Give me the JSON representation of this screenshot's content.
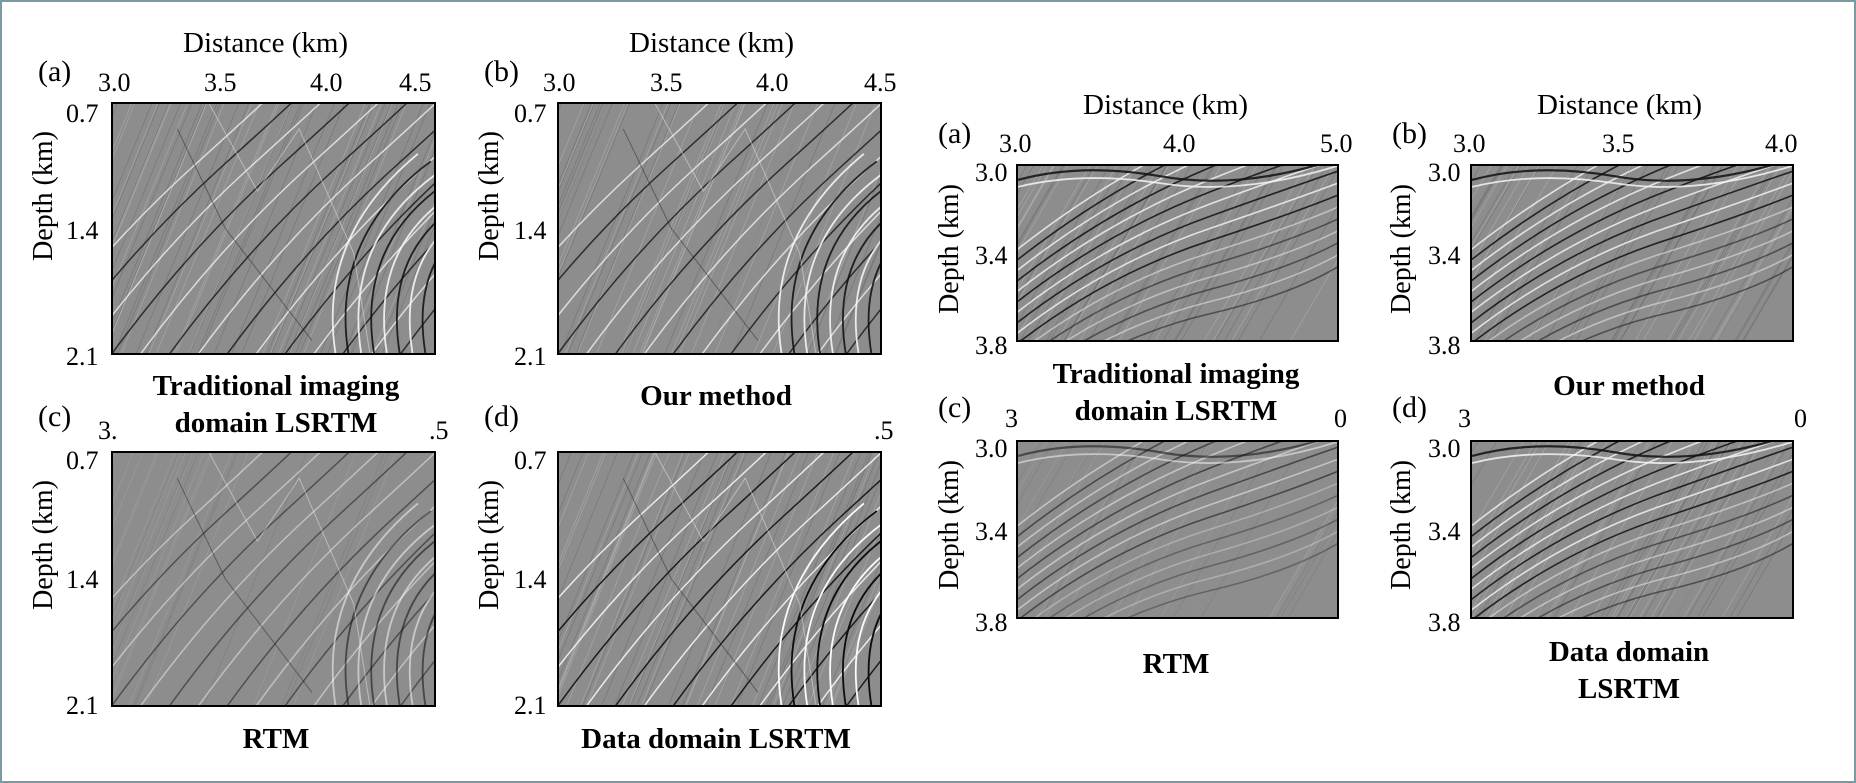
{
  "figure_left": {
    "xlabel": "Distance (km)",
    "ylabel": "Depth (km)",
    "panels": [
      {
        "letter": "(a)",
        "xticks": [
          "3.0",
          "3.5",
          "4.0",
          "4.5"
        ],
        "yticks": [
          "0.7",
          "1.4",
          "2.1"
        ],
        "caption_lines": [
          "Traditional imaging",
          "domain LSRTM"
        ]
      },
      {
        "letter": "(b)",
        "xticks": [
          "3.0",
          "3.5",
          "4.0",
          "4.5"
        ],
        "yticks": [
          "0.7",
          "1.4",
          "2.1"
        ],
        "caption_lines": [
          "Our method"
        ]
      },
      {
        "letter": "(c)",
        "xticks": [
          "3.",
          ".5"
        ],
        "yticks": [
          "0.7",
          "1.4",
          "2.1"
        ],
        "caption_lines": [
          "RTM"
        ]
      },
      {
        "letter": "(d)",
        "xticks": [
          ".5"
        ],
        "yticks": [
          "0.7",
          "1.4",
          "2.1"
        ],
        "caption_lines": [
          "Data domain LSRTM"
        ]
      }
    ]
  },
  "figure_right": {
    "xlabel_a": "Distance (km)",
    "xlabel_b": "Distance (km)",
    "ylabel": "Depth (km)",
    "panels": [
      {
        "letter": "(a)",
        "xticks": [
          "3.0",
          "4.0",
          "5.0"
        ],
        "yticks": [
          "3.0",
          "3.4",
          "3.8"
        ],
        "caption_lines": [
          "Traditional imaging",
          "domain LSRTM"
        ]
      },
      {
        "letter": "(b)",
        "xticks": [
          "3.0",
          "3.5",
          "4.0"
        ],
        "yticks": [
          "3.0",
          "3.4",
          "3.8"
        ],
        "caption_lines": [
          "Our method"
        ]
      },
      {
        "letter": "(c)",
        "xticks": [
          "3",
          "0"
        ],
        "yticks": [
          "3.0",
          "3.4",
          "3.8"
        ],
        "caption_lines": [
          "RTM"
        ]
      },
      {
        "letter": "(d)",
        "xticks": [
          "3",
          "0"
        ],
        "yticks": [
          "3.0",
          "3.4",
          "3.8"
        ],
        "caption_lines": [
          "Data domain",
          "LSRTM"
        ]
      }
    ]
  }
}
